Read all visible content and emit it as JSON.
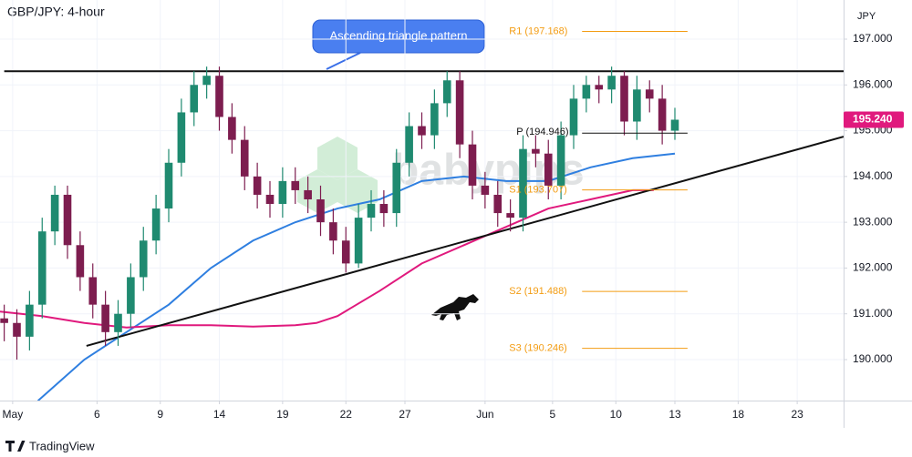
{
  "chart_data": {
    "type": "candlestick",
    "title": "GBP/JPY: 4-hour",
    "y_axis_label": "JPY",
    "annotation": "Ascending triangle pattern",
    "watermark": "babypips",
    "brand": "TradingView",
    "up_color": "#1f8a70",
    "down_color": "#7d1d4f",
    "xlim": [
      0,
      200
    ],
    "xticks": [
      {
        "value": 3,
        "label": "May"
      },
      {
        "value": 23,
        "label": "6"
      },
      {
        "value": 38,
        "label": "9"
      },
      {
        "value": 52,
        "label": "14"
      },
      {
        "value": 67,
        "label": "19"
      },
      {
        "value": 82,
        "label": "22"
      },
      {
        "value": 96,
        "label": "27"
      },
      {
        "value": 115,
        "label": "Jun"
      },
      {
        "value": 131,
        "label": "5"
      },
      {
        "value": 146,
        "label": "10"
      },
      {
        "value": 160,
        "label": "13"
      },
      {
        "value": 175,
        "label": "18"
      },
      {
        "value": 189,
        "label": "23"
      }
    ],
    "ylim": [
      189.105,
      197.855
    ],
    "yticks": [
      {
        "value": 190,
        "label": "190.000"
      },
      {
        "value": 191,
        "label": "191.000"
      },
      {
        "value": 192,
        "label": "192.000"
      },
      {
        "value": 193,
        "label": "193.000"
      },
      {
        "value": 194,
        "label": "194.000"
      },
      {
        "value": 195,
        "label": "195.000"
      },
      {
        "value": 196,
        "label": "196.000"
      },
      {
        "value": 197,
        "label": "197.000"
      }
    ],
    "x": [
      1,
      4,
      7,
      10,
      13,
      16,
      19,
      22,
      25,
      28,
      31,
      34,
      37,
      40,
      43,
      46,
      49,
      52,
      55,
      58,
      61,
      64,
      67,
      70,
      73,
      76,
      79,
      82,
      85,
      88,
      91,
      94,
      97,
      100,
      103,
      106,
      109,
      112,
      115,
      118,
      121,
      124,
      127,
      130,
      133,
      136,
      139,
      142,
      145,
      148,
      151,
      154,
      157,
      160
    ],
    "open": [
      190.9,
      190.8,
      190.5,
      191.2,
      192.8,
      193.6,
      192.5,
      191.8,
      191.2,
      190.6,
      191.0,
      191.8,
      192.6,
      193.3,
      194.3,
      195.4,
      196.0,
      196.2,
      195.3,
      194.8,
      194.0,
      193.6,
      193.4,
      193.9,
      193.7,
      193.5,
      193.0,
      192.6,
      192.1,
      193.1,
      193.4,
      193.2,
      194.3,
      195.1,
      194.9,
      195.6,
      196.1,
      194.7,
      193.8,
      193.6,
      193.2,
      193.1,
      194.6,
      194.5,
      193.8,
      194.9,
      195.7,
      196.0,
      195.9,
      196.2,
      195.2,
      195.9,
      195.7,
      195.0
    ],
    "high": [
      191.2,
      191.1,
      191.5,
      193.1,
      193.8,
      193.8,
      192.8,
      192.1,
      191.5,
      191.3,
      192.1,
      192.9,
      193.6,
      194.6,
      195.7,
      196.3,
      196.4,
      196.4,
      195.6,
      195.1,
      194.3,
      193.9,
      194.2,
      194.2,
      194.0,
      193.8,
      193.3,
      192.9,
      193.4,
      193.7,
      193.7,
      194.6,
      195.4,
      195.4,
      195.9,
      196.3,
      196.3,
      195.0,
      194.1,
      193.9,
      193.5,
      194.9,
      194.9,
      194.8,
      195.2,
      196.0,
      196.2,
      196.2,
      196.4,
      196.3,
      196.2,
      196.1,
      196.0,
      195.5
    ],
    "low": [
      190.4,
      190.0,
      190.2,
      190.9,
      192.5,
      192.2,
      191.5,
      190.9,
      190.3,
      190.3,
      190.7,
      191.5,
      192.3,
      193.0,
      194.0,
      195.1,
      195.7,
      195.0,
      194.5,
      193.7,
      193.3,
      193.1,
      193.1,
      193.4,
      193.2,
      192.7,
      192.3,
      191.9,
      192.0,
      192.8,
      192.9,
      192.9,
      194.0,
      194.6,
      194.6,
      195.3,
      194.4,
      193.5,
      193.3,
      192.9,
      192.8,
      192.8,
      194.2,
      193.5,
      193.5,
      194.6,
      195.4,
      195.6,
      195.6,
      194.9,
      194.8,
      195.4,
      194.7,
      194.8
    ],
    "close": [
      190.8,
      190.5,
      191.2,
      192.8,
      193.6,
      192.5,
      191.8,
      191.2,
      190.6,
      191.0,
      191.8,
      192.6,
      193.3,
      194.3,
      195.4,
      196.0,
      196.2,
      195.3,
      194.8,
      194.0,
      193.6,
      193.4,
      193.9,
      193.7,
      193.5,
      193.0,
      192.6,
      192.1,
      193.1,
      193.4,
      193.2,
      194.3,
      195.1,
      194.9,
      195.6,
      196.1,
      194.7,
      193.8,
      193.6,
      193.2,
      193.1,
      194.6,
      194.5,
      193.8,
      194.9,
      195.7,
      196.0,
      195.9,
      196.2,
      195.2,
      195.9,
      195.7,
      195.0,
      195.24
    ],
    "overlays": [
      {
        "color": "#2f7fe0",
        "x": [
          9,
          20,
          30,
          40,
          50,
          60,
          70,
          80,
          90,
          100,
          110,
          120,
          130,
          140,
          150,
          160
        ],
        "values": [
          189.1,
          190.0,
          190.6,
          191.2,
          192.0,
          192.6,
          193.0,
          193.3,
          193.5,
          193.9,
          194.0,
          193.9,
          193.9,
          194.2,
          194.4,
          194.5
        ]
      },
      {
        "color": "#e0197d",
        "x": [
          0,
          10,
          20,
          30,
          40,
          50,
          60,
          70,
          75,
          80,
          90,
          100,
          110,
          120,
          130,
          140,
          150,
          155
        ],
        "values": [
          191.05,
          190.95,
          190.8,
          190.7,
          190.75,
          190.75,
          190.72,
          190.75,
          190.8,
          190.95,
          191.5,
          192.1,
          192.5,
          192.9,
          193.3,
          193.5,
          193.7,
          193.7
        ]
      }
    ],
    "trendlines": [
      {
        "color": "#111111",
        "x": [
          1,
          200
        ],
        "values": [
          196.3,
          196.3
        ]
      },
      {
        "color": "#111111",
        "x": [
          20.5,
          200
        ],
        "values": [
          190.3,
          194.87
        ]
      }
    ],
    "pivots": [
      {
        "label": "R1 (197.168)",
        "value": 197.168,
        "color": "#f39c12"
      },
      {
        "label": "P (194.946)",
        "value": 194.946,
        "color": "#111111"
      },
      {
        "label": "S1 (193.707)",
        "value": 193.707,
        "color": "#f39c12"
      },
      {
        "label": "S2 (191.488)",
        "value": 191.488,
        "color": "#f39c12"
      },
      {
        "label": "S3 (190.246)",
        "value": 190.246,
        "color": "#f39c12"
      }
    ],
    "pivot_xrange": [
      138,
      163
    ],
    "last_price": {
      "value": 195.24,
      "label": "195.240",
      "color": "#e0197d"
    }
  }
}
